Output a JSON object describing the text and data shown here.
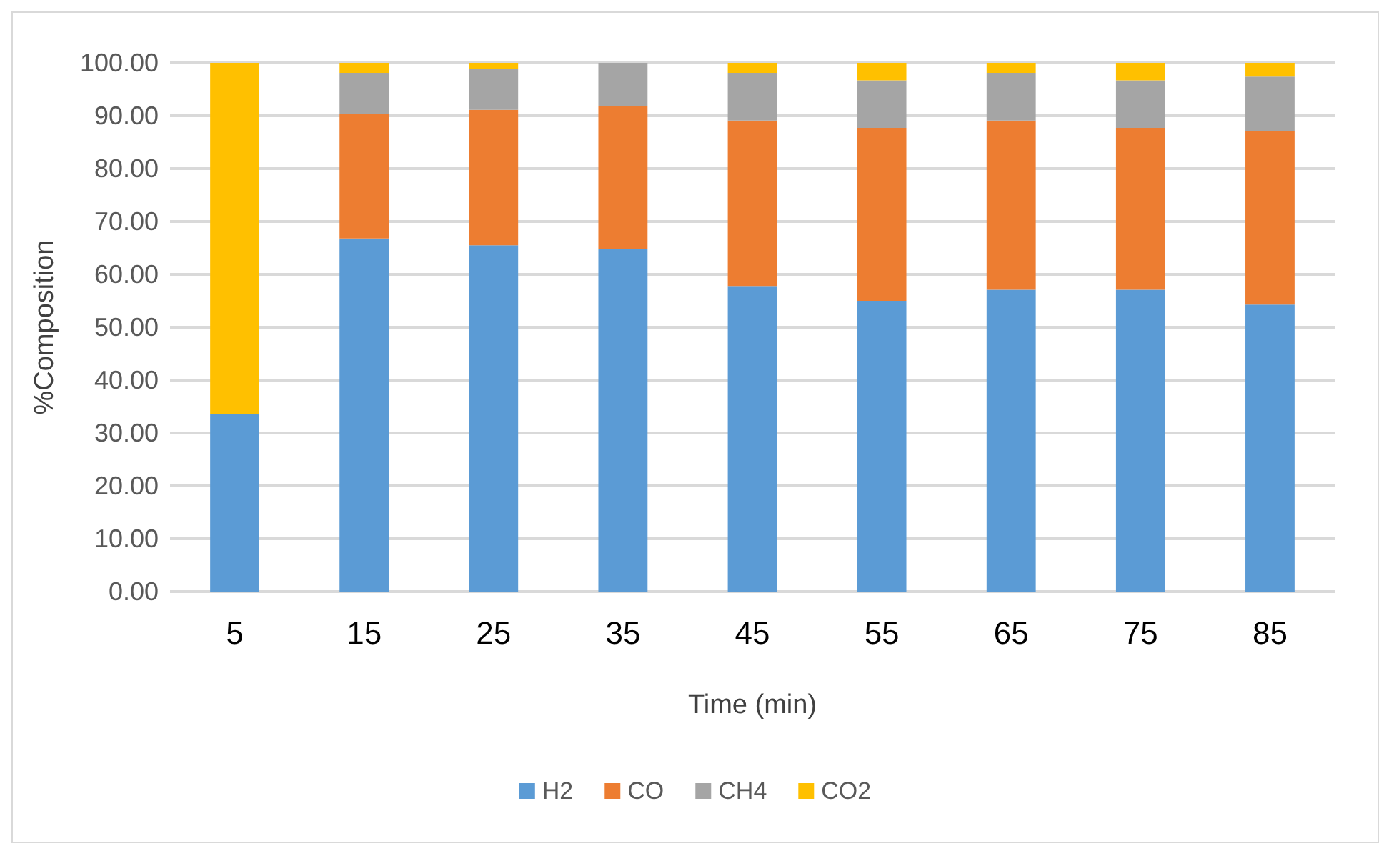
{
  "chart_data": {
    "type": "bar",
    "stacked": true,
    "xlabel": "Time (min)",
    "ylabel": "%Composition",
    "categories": [
      "5",
      "15",
      "25",
      "35",
      "45",
      "55",
      "65",
      "75",
      "85"
    ],
    "series": [
      {
        "name": "H2",
        "color": "#5b9bd5",
        "values": [
          33.5,
          66.8,
          65.5,
          64.8,
          57.8,
          55.0,
          57.1,
          57.1,
          54.3
        ]
      },
      {
        "name": "CO",
        "color": "#ed7d31",
        "values": [
          0,
          23.5,
          25.6,
          27.0,
          31.3,
          32.7,
          32.0,
          30.6,
          32.8
        ]
      },
      {
        "name": "CH4",
        "color": "#a5a5a5",
        "values": [
          0,
          7.8,
          7.7,
          8.2,
          9.0,
          9.0,
          9.0,
          9.0,
          10.3
        ]
      },
      {
        "name": "CO2",
        "color": "#ffc000",
        "values": [
          66.5,
          1.9,
          1.2,
          0,
          1.9,
          3.3,
          1.9,
          3.3,
          2.6
        ]
      }
    ],
    "ylim": [
      0,
      100
    ],
    "yticks": [
      {
        "value": 0,
        "label": "0.00"
      },
      {
        "value": 10,
        "label": "10.00"
      },
      {
        "value": 20,
        "label": "20.00"
      },
      {
        "value": 30,
        "label": "30.00"
      },
      {
        "value": 40,
        "label": "40.00"
      },
      {
        "value": 50,
        "label": "50.00"
      },
      {
        "value": 60,
        "label": "60.00"
      },
      {
        "value": 70,
        "label": "70.00"
      },
      {
        "value": 80,
        "label": "80.00"
      },
      {
        "value": 90,
        "label": "90.00"
      },
      {
        "value": 100,
        "label": "100.00"
      }
    ],
    "grid": "y",
    "legend": "bottom"
  }
}
